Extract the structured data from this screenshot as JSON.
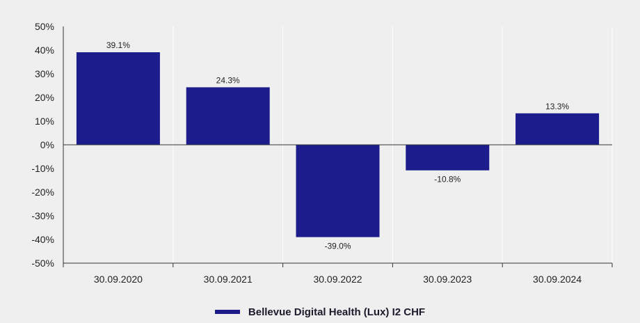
{
  "chart_data": {
    "type": "bar",
    "categories": [
      "30.09.2020",
      "30.09.2021",
      "30.09.2022",
      "30.09.2023",
      "30.09.2024"
    ],
    "series": [
      {
        "name": "Bellevue Digital Health (Lux) I2 CHF",
        "values": [
          39.1,
          24.3,
          -39.0,
          -10.8,
          13.3
        ],
        "labels": [
          "39.1%",
          "24.3%",
          "-39.0%",
          "-10.8%",
          "13.3%"
        ],
        "color": "#1c1c8c"
      }
    ],
    "yticks": [
      50,
      40,
      30,
      20,
      10,
      0,
      -10,
      -20,
      -30,
      -40,
      -50
    ],
    "ytick_labels": [
      "50%",
      "40%",
      "30%",
      "20%",
      "10%",
      "0%",
      "-10%",
      "-20%",
      "-30%",
      "-40%",
      "-50%"
    ],
    "ylim": [
      -50,
      50
    ],
    "grid": "vertical separators between categories",
    "legend_position": "bottom-center"
  }
}
